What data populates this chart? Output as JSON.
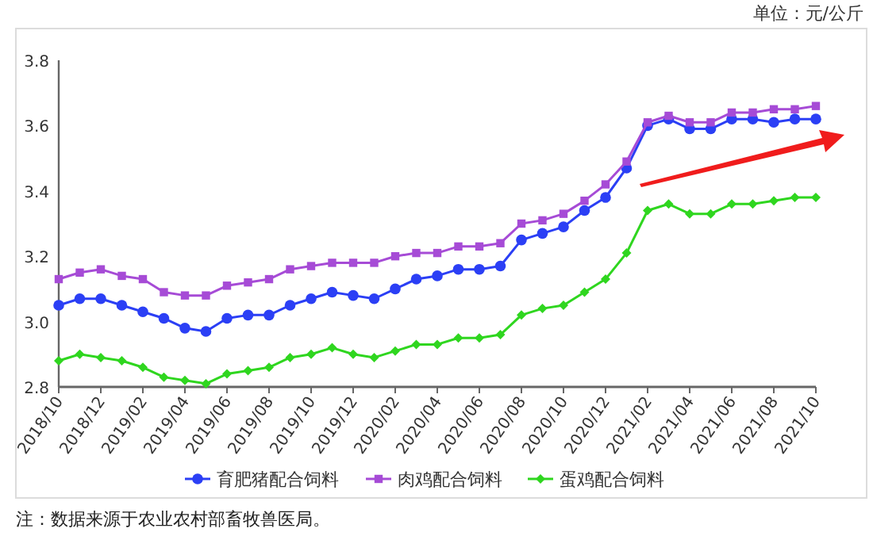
{
  "chart_data": {
    "type": "line",
    "categories": [
      "2018/10",
      null,
      "2018/12",
      null,
      "2019/02",
      null,
      "2019/04",
      null,
      "2019/06",
      null,
      "2019/08",
      null,
      "2019/10",
      null,
      "2019/12",
      null,
      "2020/02",
      null,
      "2020/04",
      null,
      "2020/06",
      null,
      "2020/08",
      null,
      "2020/10",
      null,
      "2020/12",
      null,
      "2021/02",
      null,
      "2021/04",
      null,
      "2021/06",
      null,
      "2021/08",
      null,
      "2021/10"
    ],
    "series": [
      {
        "name": "育肥猪配合饲料",
        "color": "#2b3ff5",
        "marker": "circle",
        "values": [
          3.05,
          3.07,
          3.07,
          3.05,
          3.03,
          3.01,
          2.98,
          2.97,
          3.01,
          3.02,
          3.02,
          3.05,
          3.07,
          3.09,
          3.08,
          3.07,
          3.1,
          3.13,
          3.14,
          3.16,
          3.16,
          3.17,
          3.25,
          3.27,
          3.29,
          3.34,
          3.38,
          3.47,
          3.6,
          3.62,
          3.59,
          3.59,
          3.62,
          3.62,
          3.61,
          3.62,
          3.62
        ]
      },
      {
        "name": "肉鸡配合饲料",
        "color": "#a64bd6",
        "marker": "square",
        "values": [
          3.13,
          3.15,
          3.16,
          3.14,
          3.13,
          3.09,
          3.08,
          3.08,
          3.11,
          3.12,
          3.13,
          3.16,
          3.17,
          3.18,
          3.18,
          3.18,
          3.2,
          3.21,
          3.21,
          3.23,
          3.23,
          3.24,
          3.3,
          3.31,
          3.33,
          3.37,
          3.42,
          3.49,
          3.61,
          3.63,
          3.61,
          3.61,
          3.64,
          3.64,
          3.65,
          3.65,
          3.66
        ]
      },
      {
        "name": "蛋鸡配合饲料",
        "color": "#2fd61f",
        "marker": "diamond",
        "values": [
          2.88,
          2.9,
          2.89,
          2.88,
          2.86,
          2.83,
          2.82,
          2.81,
          2.84,
          2.85,
          2.86,
          2.89,
          2.9,
          2.92,
          2.9,
          2.89,
          2.91,
          2.93,
          2.93,
          2.95,
          2.95,
          2.96,
          3.02,
          3.04,
          3.05,
          3.09,
          3.13,
          3.21,
          3.34,
          3.36,
          3.33,
          3.33,
          3.36,
          3.36,
          3.37,
          3.38,
          3.38
        ]
      }
    ],
    "ylim": [
      2.8,
      3.8
    ],
    "yticks": [
      2.8,
      {
        "value": 3,
        "label": "3.0"
      },
      3.2,
      3.4,
      3.6,
      3.8
    ],
    "ylabel": "单位：元/公斤",
    "annotations": [
      "注：数据来源于农业农村部畜牧兽医局。"
    ],
    "legend": "bottom",
    "grid": false,
    "line_style": "solid"
  }
}
